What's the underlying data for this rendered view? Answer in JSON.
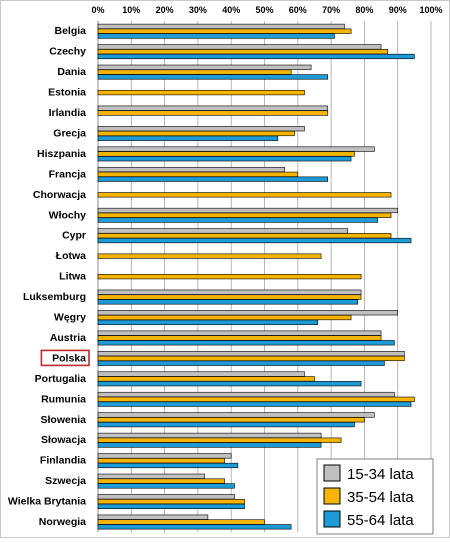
{
  "chart_data": {
    "type": "bar",
    "orientation": "horizontal",
    "categories": [
      "Belgia",
      "Czechy",
      "Dania",
      "Estonia",
      "Irlandia",
      "Grecja",
      "Hiszpania",
      "Francja",
      "Chorwacja",
      "Włochy",
      "Cypr",
      "Łotwa",
      "Litwa",
      "Luksemburg",
      "Węgry",
      "Austria",
      "Polska",
      "Portugalia",
      "Rumunia",
      "Słowenia",
      "Słowacja",
      "Finlandia",
      "Szwecja",
      "Wielka Brytania",
      "Norwegia"
    ],
    "series": [
      {
        "name": "15-34 lata",
        "color": "#c0c0c0",
        "values": [
          74,
          85,
          64,
          null,
          69,
          62,
          83,
          56,
          null,
          90,
          75,
          null,
          null,
          79,
          90,
          85,
          92,
          62,
          89,
          83,
          67,
          40,
          32,
          41,
          33
        ]
      },
      {
        "name": "35-54 lata",
        "color": "#f5b400",
        "values": [
          76,
          87,
          58,
          62,
          69,
          59,
          77,
          60,
          88,
          88,
          88,
          67,
          79,
          79,
          76,
          85,
          92,
          65,
          95,
          80,
          73,
          38,
          38,
          44,
          50
        ]
      },
      {
        "name": "55-64 lata",
        "color": "#1e9ad6",
        "values": [
          71,
          95,
          69,
          null,
          null,
          54,
          76,
          69,
          null,
          84,
          94,
          null,
          null,
          78,
          66,
          89,
          86,
          79,
          94,
          77,
          67,
          42,
          41,
          44,
          58
        ]
      }
    ],
    "xlim": [
      0,
      100
    ],
    "xtick_labels": [
      "0%",
      "10%",
      "20%",
      "30%",
      "40%",
      "50%",
      "60%",
      "70%",
      "80%",
      "90%",
      "100%"
    ],
    "grid": true,
    "legend_position": "bottom-right",
    "highlighted_category": "Polska",
    "title": "",
    "xlabel": "",
    "ylabel": ""
  }
}
